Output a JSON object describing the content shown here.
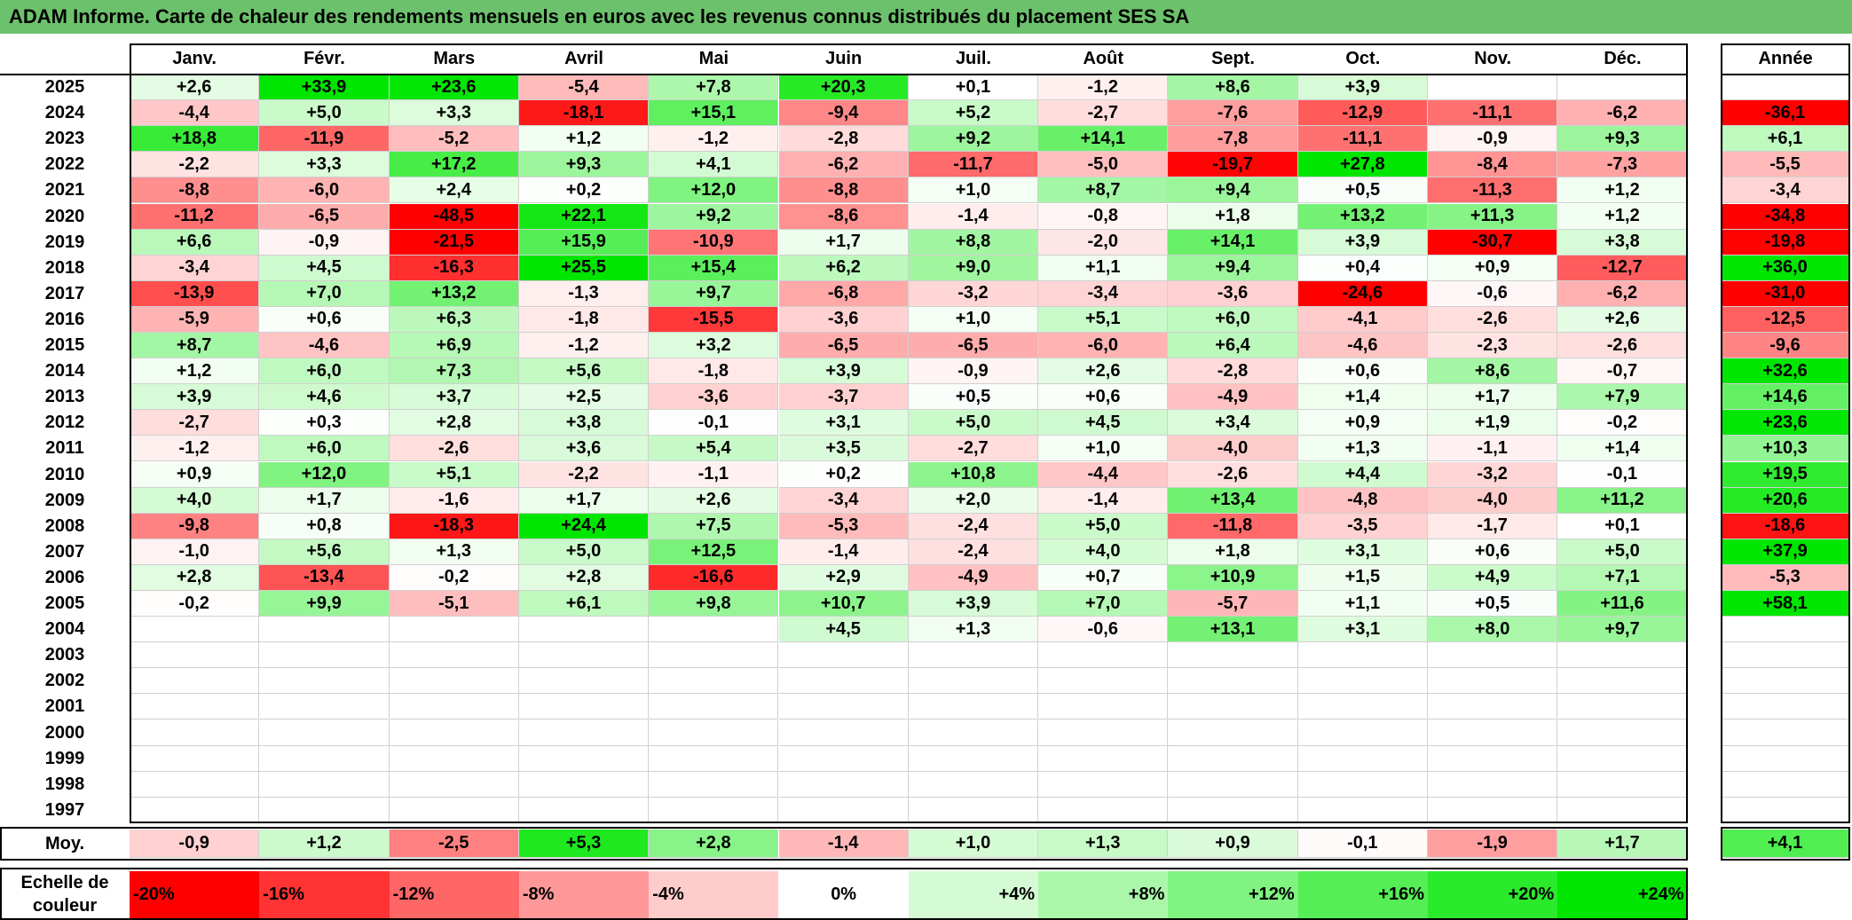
{
  "title": "ADAM Informe. Carte de chaleur des rendements mensuels en euros avec les revenus connus distribués du placement SES SA",
  "colors": {
    "title_bar": "#6cc26c",
    "negative_max": "#ff0000",
    "positive_max": "#00e000",
    "neutral": "#ffffff"
  },
  "chart_data": {
    "type": "heatmap",
    "months": [
      "Janv.",
      "Févr.",
      "Mars",
      "Avril",
      "Mai",
      "Juin",
      "Juil.",
      "Août",
      "Sept.",
      "Oct.",
      "Nov.",
      "Déc."
    ],
    "year_header": "Année",
    "rows": [
      {
        "year": "2025",
        "values": [
          "+2,6",
          "+33,9",
          "+23,6",
          "-5,4",
          "+7,8",
          "+20,3",
          "+0,1",
          "-1,2",
          "+8,6",
          "+3,9",
          "",
          ""
        ],
        "annual": ""
      },
      {
        "year": "2024",
        "values": [
          "-4,4",
          "+5,0",
          "+3,3",
          "-18,1",
          "+15,1",
          "-9,4",
          "+5,2",
          "-2,7",
          "-7,6",
          "-12,9",
          "-11,1",
          "-6,2"
        ],
        "annual": "-36,1"
      },
      {
        "year": "2023",
        "values": [
          "+18,8",
          "-11,9",
          "-5,2",
          "+1,2",
          "-1,2",
          "-2,8",
          "+9,2",
          "+14,1",
          "-7,8",
          "-11,1",
          "-0,9",
          "+9,3"
        ],
        "annual": "+6,1"
      },
      {
        "year": "2022",
        "values": [
          "-2,2",
          "+3,3",
          "+17,2",
          "+9,3",
          "+4,1",
          "-6,2",
          "-11,7",
          "-5,0",
          "-19,7",
          "+27,8",
          "-8,4",
          "-7,3"
        ],
        "annual": "-5,5"
      },
      {
        "year": "2021",
        "values": [
          "-8,8",
          "-6,0",
          "+2,4",
          "+0,2",
          "+12,0",
          "-8,8",
          "+1,0",
          "+8,7",
          "+9,4",
          "+0,5",
          "-11,3",
          "+1,2"
        ],
        "annual": "-3,4"
      },
      {
        "year": "2020",
        "values": [
          "-11,2",
          "-6,5",
          "-48,5",
          "+22,1",
          "+9,2",
          "-8,6",
          "-1,4",
          "-0,8",
          "+1,8",
          "+13,2",
          "+11,3",
          "+1,2"
        ],
        "annual": "-34,8"
      },
      {
        "year": "2019",
        "values": [
          "+6,6",
          "-0,9",
          "-21,5",
          "+15,9",
          "-10,9",
          "+1,7",
          "+8,8",
          "-2,0",
          "+14,1",
          "+3,9",
          "-30,7",
          "+3,8"
        ],
        "annual": "-19,8"
      },
      {
        "year": "2018",
        "values": [
          "-3,4",
          "+4,5",
          "-16,3",
          "+25,5",
          "+15,4",
          "+6,2",
          "+9,0",
          "+1,1",
          "+9,4",
          "+0,4",
          "+0,9",
          "-12,7"
        ],
        "annual": "+36,0"
      },
      {
        "year": "2017",
        "values": [
          "-13,9",
          "+7,0",
          "+13,2",
          "-1,3",
          "+9,7",
          "-6,8",
          "-3,2",
          "-3,4",
          "-3,6",
          "-24,6",
          "-0,6",
          "-6,2"
        ],
        "annual": "-31,0"
      },
      {
        "year": "2016",
        "values": [
          "-5,9",
          "+0,6",
          "+6,3",
          "-1,8",
          "-15,5",
          "-3,6",
          "+1,0",
          "+5,1",
          "+6,0",
          "-4,1",
          "-2,6",
          "+2,6"
        ],
        "annual": "-12,5"
      },
      {
        "year": "2015",
        "values": [
          "+8,7",
          "-4,6",
          "+6,9",
          "-1,2",
          "+3,2",
          "-6,5",
          "-6,5",
          "-6,0",
          "+6,4",
          "-4,6",
          "-2,3",
          "-2,6"
        ],
        "annual": "-9,6"
      },
      {
        "year": "2014",
        "values": [
          "+1,2",
          "+6,0",
          "+7,3",
          "+5,6",
          "-1,8",
          "+3,9",
          "-0,9",
          "+2,6",
          "-2,8",
          "+0,6",
          "+8,6",
          "-0,7"
        ],
        "annual": "+32,6"
      },
      {
        "year": "2013",
        "values": [
          "+3,9",
          "+4,6",
          "+3,7",
          "+2,5",
          "-3,6",
          "-3,7",
          "+0,5",
          "+0,6",
          "-4,9",
          "+1,4",
          "+1,7",
          "+7,9"
        ],
        "annual": "+14,6"
      },
      {
        "year": "2012",
        "values": [
          "-2,7",
          "+0,3",
          "+2,8",
          "+3,8",
          "-0,1",
          "+3,1",
          "+5,0",
          "+4,5",
          "+3,4",
          "+0,9",
          "+1,9",
          "-0,2"
        ],
        "annual": "+23,6"
      },
      {
        "year": "2011",
        "values": [
          "-1,2",
          "+6,0",
          "-2,6",
          "+3,6",
          "+5,4",
          "+3,5",
          "-2,7",
          "+1,0",
          "-4,0",
          "+1,3",
          "-1,1",
          "+1,4"
        ],
        "annual": "+10,3"
      },
      {
        "year": "2010",
        "values": [
          "+0,9",
          "+12,0",
          "+5,1",
          "-2,2",
          "-1,1",
          "+0,2",
          "+10,8",
          "-4,4",
          "-2,6",
          "+4,4",
          "-3,2",
          "-0,1"
        ],
        "annual": "+19,5"
      },
      {
        "year": "2009",
        "values": [
          "+4,0",
          "+1,7",
          "-1,6",
          "+1,7",
          "+2,6",
          "-3,4",
          "+2,0",
          "-1,4",
          "+13,4",
          "-4,8",
          "-4,0",
          "+11,2"
        ],
        "annual": "+20,6"
      },
      {
        "year": "2008",
        "values": [
          "-9,8",
          "+0,8",
          "-18,3",
          "+24,4",
          "+7,5",
          "-5,3",
          "-2,4",
          "+5,0",
          "-11,8",
          "-3,5",
          "-1,7",
          "+0,1"
        ],
        "annual": "-18,6"
      },
      {
        "year": "2007",
        "values": [
          "-1,0",
          "+5,6",
          "+1,3",
          "+5,0",
          "+12,5",
          "-1,4",
          "-2,4",
          "+4,0",
          "+1,8",
          "+3,1",
          "+0,6",
          "+5,0"
        ],
        "annual": "+37,9"
      },
      {
        "year": "2006",
        "values": [
          "+2,8",
          "-13,4",
          "-0,2",
          "+2,8",
          "-16,6",
          "+2,9",
          "-4,9",
          "+0,7",
          "+10,9",
          "+1,5",
          "+4,9",
          "+7,1"
        ],
        "annual": "-5,3"
      },
      {
        "year": "2005",
        "values": [
          "-0,2",
          "+9,9",
          "-5,1",
          "+6,1",
          "+9,8",
          "+10,7",
          "+3,9",
          "+7,0",
          "-5,7",
          "+1,1",
          "+0,5",
          "+11,6"
        ],
        "annual": "+58,1"
      },
      {
        "year": "2004",
        "values": [
          "",
          "",
          "",
          "",
          "",
          "+4,5",
          "+1,3",
          "-0,6",
          "+13,1",
          "+3,1",
          "+8,0",
          "+9,7"
        ],
        "annual": ""
      },
      {
        "year": "2003",
        "values": [
          "",
          "",
          "",
          "",
          "",
          "",
          "",
          "",
          "",
          "",
          "",
          ""
        ],
        "annual": ""
      },
      {
        "year": "2002",
        "values": [
          "",
          "",
          "",
          "",
          "",
          "",
          "",
          "",
          "",
          "",
          "",
          ""
        ],
        "annual": ""
      },
      {
        "year": "2001",
        "values": [
          "",
          "",
          "",
          "",
          "",
          "",
          "",
          "",
          "",
          "",
          "",
          ""
        ],
        "annual": ""
      },
      {
        "year": "2000",
        "values": [
          "",
          "",
          "",
          "",
          "",
          "",
          "",
          "",
          "",
          "",
          "",
          ""
        ],
        "annual": ""
      },
      {
        "year": "1999",
        "values": [
          "",
          "",
          "",
          "",
          "",
          "",
          "",
          "",
          "",
          "",
          "",
          ""
        ],
        "annual": ""
      },
      {
        "year": "1998",
        "values": [
          "",
          "",
          "",
          "",
          "",
          "",
          "",
          "",
          "",
          "",
          "",
          ""
        ],
        "annual": ""
      },
      {
        "year": "1997",
        "values": [
          "",
          "",
          "",
          "",
          "",
          "",
          "",
          "",
          "",
          "",
          "",
          ""
        ],
        "annual": ""
      }
    ],
    "average": {
      "label": "Moy.",
      "values": [
        "-0,9",
        "+1,2",
        "-2,5",
        "+5,3",
        "+2,8",
        "-1,4",
        "+1,0",
        "+1,3",
        "+0,9",
        "-0,1",
        "-1,9",
        "+1,7"
      ],
      "annual": "+4,1"
    },
    "color_scale": {
      "label": "Echelle de couleur",
      "stops": [
        "-20%",
        "-16%",
        "-12%",
        "-8%",
        "-4%",
        "0%",
        "+4%",
        "+8%",
        "+12%",
        "+16%",
        "+20%",
        "+24%"
      ],
      "stop_values": [
        -20,
        -16,
        -12,
        -8,
        -4,
        0,
        4,
        8,
        12,
        16,
        20,
        24
      ]
    }
  }
}
